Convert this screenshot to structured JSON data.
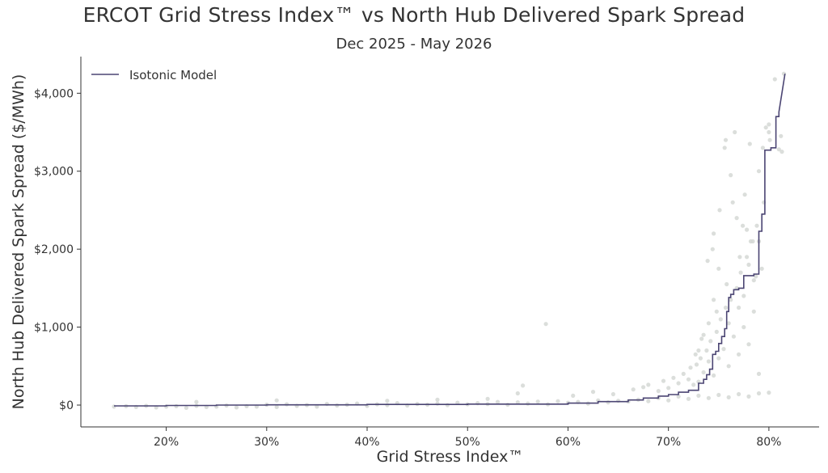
{
  "chart_data": {
    "type": "scatter",
    "title": "ERCOT Grid Stress Index™ vs North Hub Delivered Spark Spread",
    "subtitle": "Dec 2025 - May 2026",
    "xlabel": "Grid Stress Index™",
    "ylabel": "North Hub Delivered Spark Spread ($/MWh)",
    "xlim": [
      0.115,
      0.85
    ],
    "ylim": [
      -280,
      4470
    ],
    "x_ticks": [
      0.2,
      0.3,
      0.4,
      0.5,
      0.6,
      0.7,
      0.8
    ],
    "x_tick_labels": [
      "20%",
      "30%",
      "40%",
      "50%",
      "60%",
      "70%",
      "80%"
    ],
    "y_ticks": [
      0,
      1000,
      2000,
      3000,
      4000
    ],
    "y_tick_labels": [
      "$0",
      "$1,000",
      "$2,000",
      "$3,000",
      "$4,000"
    ],
    "grid": false,
    "legend_position": "top-left",
    "colors": {
      "scatter": "#d5d8d5",
      "line": "#4b4573",
      "axis": "#333333"
    },
    "series": [
      {
        "name": "Isotonic Model",
        "kind": "line",
        "x": [
          0.148,
          0.2,
          0.2,
          0.25,
          0.25,
          0.3,
          0.3,
          0.4,
          0.4,
          0.5,
          0.5,
          0.6,
          0.6,
          0.63,
          0.63,
          0.66,
          0.66,
          0.675,
          0.675,
          0.69,
          0.69,
          0.7,
          0.7,
          0.71,
          0.71,
          0.72,
          0.72,
          0.73,
          0.73,
          0.735,
          0.735,
          0.738,
          0.738,
          0.741,
          0.741,
          0.744,
          0.744,
          0.747,
          0.747,
          0.75,
          0.75,
          0.753,
          0.753,
          0.756,
          0.756,
          0.758,
          0.758,
          0.76,
          0.76,
          0.762,
          0.762,
          0.765,
          0.765,
          0.77,
          0.77,
          0.775,
          0.775,
          0.785,
          0.785,
          0.79,
          0.79,
          0.793,
          0.793,
          0.796,
          0.796,
          0.802,
          0.802,
          0.807,
          0.807,
          0.81,
          0.81,
          0.816
        ],
        "y": [
          -10,
          -10,
          -5,
          -5,
          0,
          0,
          3,
          3,
          8,
          8,
          12,
          12,
          25,
          25,
          45,
          45,
          65,
          65,
          90,
          90,
          115,
          115,
          135,
          135,
          165,
          165,
          190,
          190,
          280,
          280,
          330,
          330,
          390,
          390,
          460,
          460,
          650,
          650,
          690,
          690,
          790,
          790,
          880,
          880,
          980,
          980,
          1200,
          1200,
          1380,
          1380,
          1420,
          1420,
          1480,
          1480,
          1500,
          1500,
          1660,
          1660,
          1680,
          1680,
          2230,
          2230,
          2450,
          2450,
          3270,
          3270,
          3300,
          3300,
          3700,
          3700,
          3760,
          4250
        ]
      },
      {
        "name": "",
        "kind": "scatter",
        "x": [
          0.148,
          0.16,
          0.17,
          0.18,
          0.19,
          0.2,
          0.21,
          0.22,
          0.23,
          0.24,
          0.25,
          0.26,
          0.27,
          0.28,
          0.29,
          0.3,
          0.31,
          0.32,
          0.33,
          0.34,
          0.35,
          0.36,
          0.37,
          0.38,
          0.39,
          0.4,
          0.41,
          0.42,
          0.43,
          0.44,
          0.45,
          0.46,
          0.47,
          0.48,
          0.49,
          0.5,
          0.51,
          0.52,
          0.53,
          0.54,
          0.55,
          0.56,
          0.57,
          0.58,
          0.59,
          0.6,
          0.61,
          0.62,
          0.63,
          0.64,
          0.65,
          0.66,
          0.67,
          0.68,
          0.69,
          0.7,
          0.71,
          0.72,
          0.73,
          0.74,
          0.75,
          0.76,
          0.77,
          0.78,
          0.79,
          0.8,
          0.23,
          0.31,
          0.42,
          0.47,
          0.52,
          0.55,
          0.555,
          0.578,
          0.605,
          0.625,
          0.645,
          0.665,
          0.675,
          0.68,
          0.69,
          0.695,
          0.7,
          0.705,
          0.71,
          0.715,
          0.72,
          0.722,
          0.725,
          0.728,
          0.73,
          0.732,
          0.735,
          0.738,
          0.74,
          0.742,
          0.745,
          0.748,
          0.75,
          0.752,
          0.755,
          0.757,
          0.76,
          0.762,
          0.765,
          0.768,
          0.77,
          0.772,
          0.775,
          0.778,
          0.78,
          0.782,
          0.785,
          0.788,
          0.79,
          0.795,
          0.8,
          0.81,
          0.813,
          0.739,
          0.745,
          0.751,
          0.756,
          0.757,
          0.762,
          0.764,
          0.766,
          0.768,
          0.771,
          0.774,
          0.776,
          0.778,
          0.781,
          0.784,
          0.79,
          0.794,
          0.797,
          0.801,
          0.806,
          0.815,
          0.812,
          0.785,
          0.775,
          0.79,
          0.78,
          0.758,
          0.748,
          0.74,
          0.735,
          0.73,
          0.727,
          0.733,
          0.745,
          0.76,
          0.77,
          0.787,
          0.793,
          0.8,
          0.744,
          0.75
        ],
        "y": [
          -20,
          -15,
          -25,
          -10,
          -30,
          -20,
          -15,
          -35,
          -10,
          -25,
          -20,
          -5,
          -30,
          -15,
          -20,
          5,
          -25,
          10,
          -10,
          0,
          -20,
          15,
          -5,
          5,
          20,
          -10,
          10,
          0,
          25,
          -5,
          15,
          5,
          20,
          0,
          30,
          10,
          25,
          15,
          40,
          5,
          35,
          20,
          45,
          10,
          50,
          30,
          40,
          20,
          60,
          35,
          55,
          45,
          70,
          50,
          90,
          60,
          110,
          80,
          120,
          90,
          130,
          100,
          140,
          110,
          150,
          160,
          40,
          60,
          55,
          70,
          80,
          150,
          250,
          1040,
          120,
          170,
          140,
          200,
          230,
          260,
          180,
          310,
          220,
          350,
          280,
          400,
          330,
          480,
          260,
          520,
          300,
          600,
          420,
          700,
          560,
          820,
          380,
          940,
          600,
          1100,
          720,
          1250,
          500,
          1350,
          880,
          1500,
          650,
          1700,
          1000,
          1900,
          780,
          2100,
          1200,
          2300,
          400,
          2600,
          3500,
          3280,
          3250,
          1850,
          2200,
          2500,
          3300,
          3400,
          2950,
          2600,
          3500,
          2400,
          1900,
          2300,
          2700,
          2250,
          3350,
          2100,
          3000,
          3300,
          3560,
          3400,
          4180,
          4250,
          3450,
          1600,
          1400,
          2100,
          1800,
          1550,
          1200,
          1050,
          900,
          700,
          650,
          850,
          1350,
          1050,
          1250,
          1650,
          1750,
          3600,
          2000,
          1750
        ]
      }
    ]
  }
}
